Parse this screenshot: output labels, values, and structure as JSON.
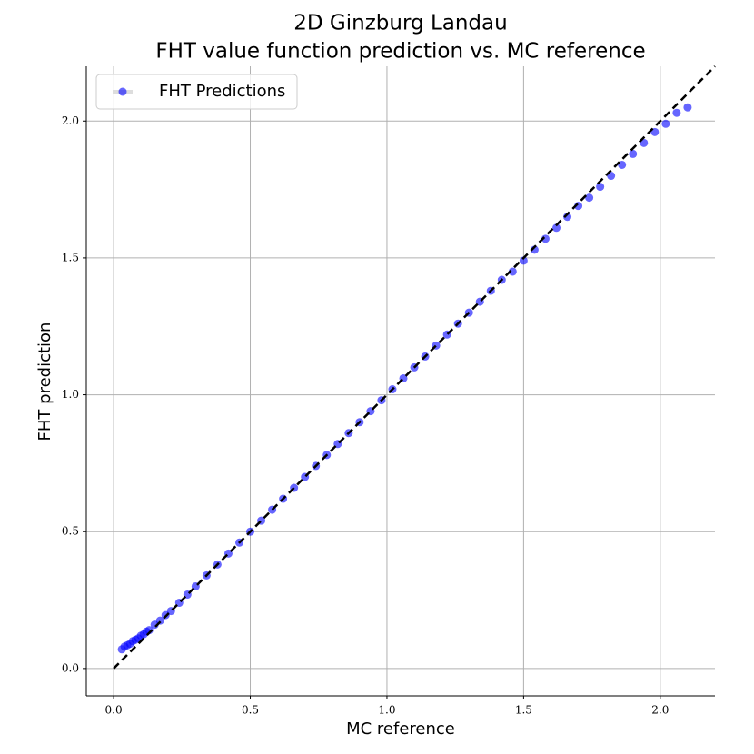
{
  "chart_data": {
    "type": "scatter",
    "title": "2D Ginzburg Landau",
    "subtitle": "FHT value function prediction vs. MC reference",
    "x_label": "MC reference",
    "y_label": "FHT prediction",
    "xlim": [
      -0.1,
      2.2
    ],
    "ylim": [
      -0.1,
      2.2
    ],
    "xticks": [
      {
        "value": 0,
        "label": "0.0"
      },
      0.5,
      {
        "value": 1,
        "label": "1.0"
      },
      1.5,
      {
        "value": 2,
        "label": "2.0"
      }
    ],
    "yticks": [
      {
        "value": 0,
        "label": "0.0"
      },
      0.5,
      {
        "value": 1,
        "label": "1.0"
      },
      1.5,
      {
        "value": 2,
        "label": "2.0"
      }
    ],
    "grid": true,
    "legend": "upper left",
    "series": [
      {
        "name": "FHT Predictions",
        "color": "#0000ff",
        "x": [
          0.03,
          0.04,
          0.05,
          0.06,
          0.07,
          0.08,
          0.09,
          0.1,
          0.11,
          0.12,
          0.13,
          0.15,
          0.17,
          0.19,
          0.21,
          0.24,
          0.27,
          0.3,
          0.34,
          0.38,
          0.42,
          0.46,
          0.5,
          0.54,
          0.58,
          0.62,
          0.66,
          0.7,
          0.74,
          0.78,
          0.82,
          0.86,
          0.9,
          0.94,
          0.98,
          1.02,
          1.06,
          1.1,
          1.14,
          1.18,
          1.22,
          1.26,
          1.3,
          1.34,
          1.38,
          1.42,
          1.46,
          1.5,
          1.54,
          1.58,
          1.62,
          1.66,
          1.7,
          1.74,
          1.78,
          1.82,
          1.86,
          1.9,
          1.94,
          1.98,
          2.02,
          2.06,
          2.1
        ],
        "values": [
          0.07,
          0.08,
          0.085,
          0.09,
          0.1,
          0.105,
          0.11,
          0.12,
          0.125,
          0.135,
          0.14,
          0.16,
          0.175,
          0.195,
          0.21,
          0.24,
          0.27,
          0.3,
          0.34,
          0.38,
          0.42,
          0.46,
          0.5,
          0.54,
          0.58,
          0.62,
          0.66,
          0.7,
          0.74,
          0.78,
          0.82,
          0.86,
          0.9,
          0.94,
          0.98,
          1.02,
          1.06,
          1.1,
          1.14,
          1.18,
          1.22,
          1.26,
          1.3,
          1.34,
          1.38,
          1.42,
          1.45,
          1.49,
          1.53,
          1.57,
          1.61,
          1.65,
          1.69,
          1.72,
          1.76,
          1.8,
          1.84,
          1.88,
          1.92,
          1.96,
          1.99,
          2.03,
          2.05
        ]
      }
    ],
    "reference_line": {
      "x": [
        0,
        2.2
      ],
      "y": [
        0,
        2.2
      ],
      "color": "#000000"
    }
  }
}
